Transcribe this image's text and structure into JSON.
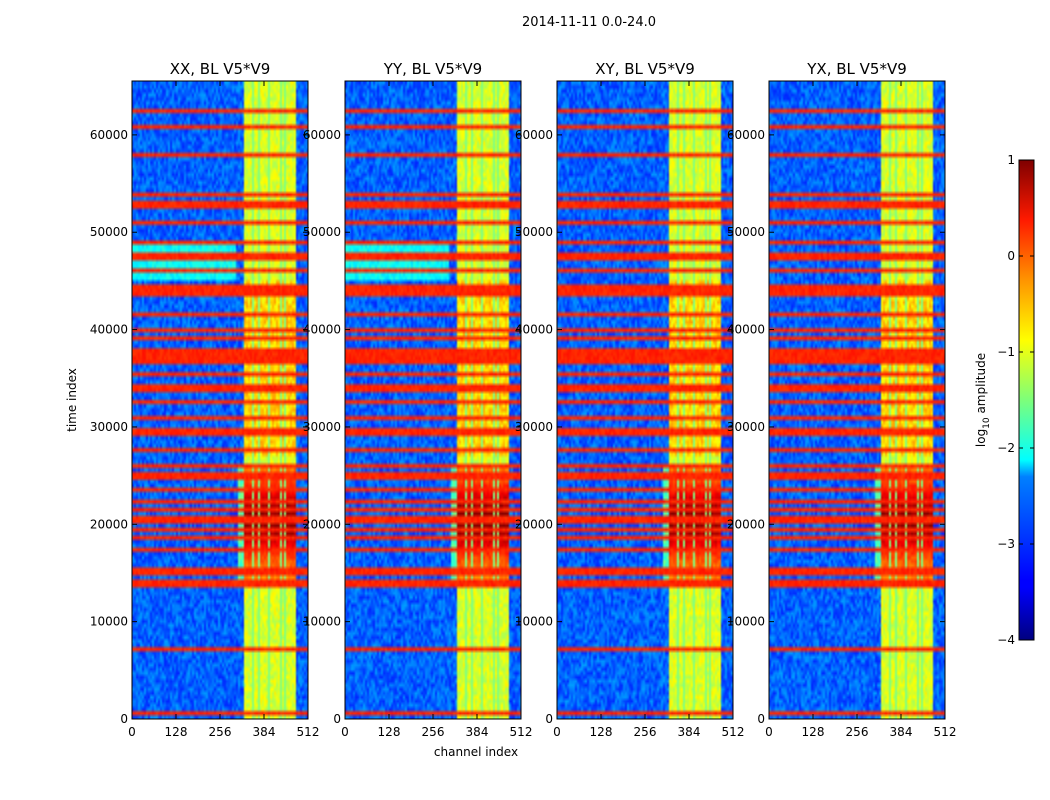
{
  "figure": {
    "suptitle": "2014-11-11 0.0-24.0",
    "xlabel": "channel index",
    "ylabel": "time index",
    "colorbar": {
      "label_prefix": "log",
      "label_sub": "10",
      "label_suffix": " amplitude",
      "ticks": [
        {
          "value": 1,
          "label": "1"
        },
        {
          "value": 0,
          "label": "0"
        },
        {
          "value": -1,
          "label": "−1"
        },
        {
          "value": -2,
          "label": "−2"
        },
        {
          "value": -3,
          "label": "−3"
        },
        {
          "value": -4,
          "label": "−4"
        }
      ],
      "range": [
        -4,
        1
      ],
      "colormap": "jet"
    }
  },
  "chart_data": {
    "type": "heatmap",
    "xlim": [
      0,
      512
    ],
    "ylim": [
      0,
      65536
    ],
    "xticks": [
      0,
      128,
      256,
      384,
      512
    ],
    "yticks": [
      0,
      10000,
      20000,
      30000,
      40000,
      50000,
      60000
    ],
    "colormap": "jet",
    "vmin": -4,
    "vmax": 1,
    "panels": [
      {
        "title": "XX, BL V5*V9",
        "show_ylabel": true,
        "show_xlabel": false,
        "peak_level": 0.96,
        "cross_pol": false
      },
      {
        "title": "YY, BL V5*V9",
        "show_ylabel": false,
        "show_xlabel": true,
        "peak_level": 1.0,
        "cross_pol": false
      },
      {
        "title": "XY, BL V5*V9",
        "show_ylabel": false,
        "show_xlabel": false,
        "peak_level": 0.94,
        "cross_pol": true
      },
      {
        "title": "YX, BL V5*V9",
        "show_ylabel": false,
        "show_xlabel": false,
        "peak_level": 0.94,
        "cross_pol": true
      }
    ],
    "signal_band": {
      "channel_start": 325,
      "channel_end": 475,
      "gap_channels": [
        350,
        368,
        398,
        435,
        447
      ]
    },
    "strong_time_range": [
      14000,
      26000
    ],
    "rfi_rows": [
      700,
      7000,
      13900,
      14300,
      14800,
      15500,
      17500,
      18500,
      19500,
      20500,
      21500,
      22500,
      23500,
      25000,
      26000,
      27500,
      29500,
      31000,
      32500,
      34000,
      35500,
      36800,
      37200,
      37600,
      38000,
      39000,
      40000,
      41500,
      43500,
      44000,
      44500,
      46000,
      47500,
      49000,
      51000,
      52500,
      53000,
      54000,
      58000,
      61000,
      62500
    ]
  }
}
